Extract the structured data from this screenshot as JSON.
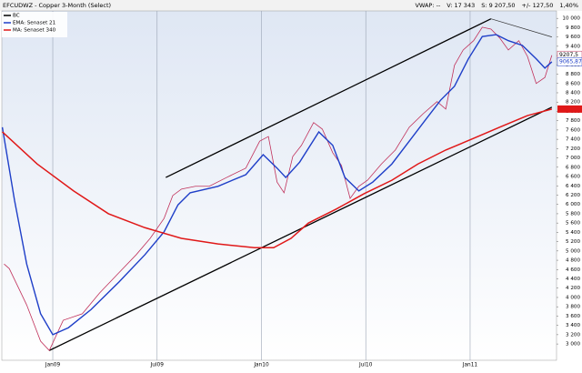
{
  "chart_data": {
    "type": "line",
    "title": "EFCUDWZ - Copper 3-Month (Select)",
    "header_stats": [
      "VWAP: --",
      "V: 17 343",
      "S: 9 207,50",
      "+/- 127,50",
      "1,40%"
    ],
    "xlim": [
      -2.93,
      28.97
    ],
    "xticks": [
      {
        "value": 0,
        "label": "Jan09"
      },
      {
        "value": 6,
        "label": "Jul09"
      },
      {
        "value": 12,
        "label": "Jan10"
      },
      {
        "value": 18,
        "label": "Jul10"
      },
      {
        "value": 24,
        "label": "Jan11"
      }
    ],
    "ylim": [
      2650,
      10160
    ],
    "yticks": [
      {
        "value": 3000,
        "label": "3 000"
      },
      {
        "value": 3200,
        "label": "3 200"
      },
      {
        "value": 3400,
        "label": "3 400"
      },
      {
        "value": 3600,
        "label": "3 600"
      },
      {
        "value": 3800,
        "label": "3 800"
      },
      {
        "value": 4000,
        "label": "4 000"
      },
      {
        "value": 4200,
        "label": "4 200"
      },
      {
        "value": 4400,
        "label": "4 400"
      },
      {
        "value": 4600,
        "label": "4 600"
      },
      {
        "value": 4800,
        "label": "4 800"
      },
      {
        "value": 5000,
        "label": "5 000"
      },
      {
        "value": 5200,
        "label": "5 200"
      },
      {
        "value": 5400,
        "label": "5 400"
      },
      {
        "value": 5600,
        "label": "5 600"
      },
      {
        "value": 5800,
        "label": "5 800"
      },
      {
        "value": 6000,
        "label": "6 000"
      },
      {
        "value": 6200,
        "label": "6 200"
      },
      {
        "value": 6400,
        "label": "6 400"
      },
      {
        "value": 6600,
        "label": "6 600"
      },
      {
        "value": 6800,
        "label": "6 800"
      },
      {
        "value": 7000,
        "label": "7 000"
      },
      {
        "value": 7200,
        "label": "7 200"
      },
      {
        "value": 7400,
        "label": "7 400"
      },
      {
        "value": 7600,
        "label": "7 600"
      },
      {
        "value": 7800,
        "label": "7 800"
      },
      {
        "value": 8000,
        "label": "8 000"
      },
      {
        "value": 8200,
        "label": "8 200"
      },
      {
        "value": 8400,
        "label": "8 400"
      },
      {
        "value": 8600,
        "label": "8 600"
      },
      {
        "value": 8800,
        "label": "8 800"
      },
      {
        "value": 9000,
        "label": "9 000"
      },
      {
        "value": 9200,
        "label": "9 200"
      },
      {
        "value": 9400,
        "label": "9 400"
      },
      {
        "value": 9600,
        "label": "9 600"
      },
      {
        "value": 9800,
        "label": "9 800"
      },
      {
        "value": 10000,
        "label": "10 000"
      }
    ],
    "grid": "x",
    "legend": "top-left",
    "series": [
      {
        "name": "BC",
        "color": "#c0305a",
        "legend_color": "#000000",
        "x": [
          -2.8,
          -2.5,
          -2.0,
          -1.5,
          -0.7,
          -0.2,
          0.6,
          1.7,
          2.7,
          3.8,
          4.8,
          5.6,
          6.4,
          6.9,
          7.4,
          8.2,
          9.0,
          10.0,
          11.1,
          11.9,
          12.4,
          12.9,
          13.3,
          13.8,
          14.3,
          15.0,
          15.5,
          16.1,
          16.6,
          17.1,
          17.6,
          18.1,
          18.9,
          19.7,
          20.5,
          21.3,
          22.1,
          22.6,
          23.1,
          23.6,
          24.2,
          24.7,
          25.2,
          25.7,
          26.2,
          26.8,
          27.3,
          27.8,
          28.3,
          28.7
        ],
        "values": [
          4720,
          4620,
          4230,
          3840,
          3060,
          2860,
          3510,
          3650,
          4100,
          4530,
          4920,
          5270,
          5700,
          6190,
          6330,
          6390,
          6390,
          6580,
          6780,
          7360,
          7460,
          6480,
          6250,
          7030,
          7270,
          7760,
          7620,
          7110,
          6840,
          6130,
          6390,
          6520,
          6870,
          7170,
          7660,
          7950,
          8210,
          8050,
          8990,
          9320,
          9520,
          9810,
          9770,
          9580,
          9320,
          9520,
          9180,
          8600,
          8730,
          9207.5
        ],
        "value_labels": [
          null,
          null,
          null,
          null,
          null,
          null,
          null,
          null,
          null,
          null,
          null,
          null,
          null,
          null,
          null,
          null,
          null,
          null,
          null,
          null,
          null,
          null,
          null,
          null,
          null,
          null,
          null,
          null,
          null,
          null,
          null,
          null,
          null,
          null,
          null,
          null,
          null,
          null,
          null,
          null,
          null,
          null,
          null,
          null,
          null,
          null,
          null,
          null,
          null,
          "9207,5"
        ]
      },
      {
        "name": "EMA: Senaset 21",
        "color": "#1f3fc8",
        "x": [
          -2.9,
          -2.2,
          -1.5,
          -0.7,
          0.0,
          0.9,
          2.2,
          3.8,
          5.3,
          6.4,
          7.2,
          7.9,
          9.5,
          11.1,
          12.1,
          12.9,
          13.4,
          14.2,
          15.3,
          16.1,
          16.8,
          17.6,
          18.4,
          19.5,
          20.5,
          21.5,
          22.3,
          23.1,
          23.9,
          24.7,
          25.5,
          26.2,
          27.0,
          27.8,
          28.3,
          28.7
        ],
        "values": [
          7660,
          6090,
          4720,
          3650,
          3200,
          3350,
          3740,
          4330,
          4920,
          5410,
          5990,
          6250,
          6390,
          6640,
          7070,
          6780,
          6580,
          6910,
          7560,
          7270,
          6580,
          6290,
          6480,
          6870,
          7360,
          7850,
          8240,
          8540,
          9130,
          9610,
          9650,
          9520,
          9420,
          9130,
          8930,
          9065.87
        ],
        "value_labels": [
          null,
          null,
          null,
          null,
          null,
          null,
          null,
          null,
          null,
          null,
          null,
          null,
          null,
          null,
          null,
          null,
          null,
          null,
          null,
          null,
          null,
          null,
          null,
          null,
          null,
          null,
          null,
          null,
          null,
          null,
          null,
          null,
          null,
          null,
          null,
          "9065,87"
        ]
      },
      {
        "name": "MA: Senaset 340",
        "color": "#e01818",
        "x": [
          -2.9,
          -0.9,
          1.2,
          3.2,
          5.3,
          7.4,
          9.5,
          11.6,
          12.7,
          13.7,
          14.7,
          16.3,
          17.9,
          19.5,
          21.0,
          22.6,
          24.2,
          25.7,
          27.3,
          28.7
        ],
        "values": [
          7560,
          6870,
          6290,
          5800,
          5500,
          5270,
          5150,
          5070,
          5070,
          5270,
          5600,
          5900,
          6230,
          6520,
          6870,
          7170,
          7420,
          7660,
          7910,
          8050
        ]
      }
    ],
    "trendlines": [
      {
        "color": "#000000",
        "x": [
          -0.2,
          28.7
        ],
        "values": [
          2860,
          8090
        ]
      },
      {
        "color": "#000000",
        "x": [
          6.5,
          25.2
        ],
        "values": [
          6580,
          9990
        ]
      },
      {
        "color": "#333333",
        "x": [
          25.2,
          28.7
        ],
        "values": [
          9990,
          9600
        ]
      }
    ]
  }
}
